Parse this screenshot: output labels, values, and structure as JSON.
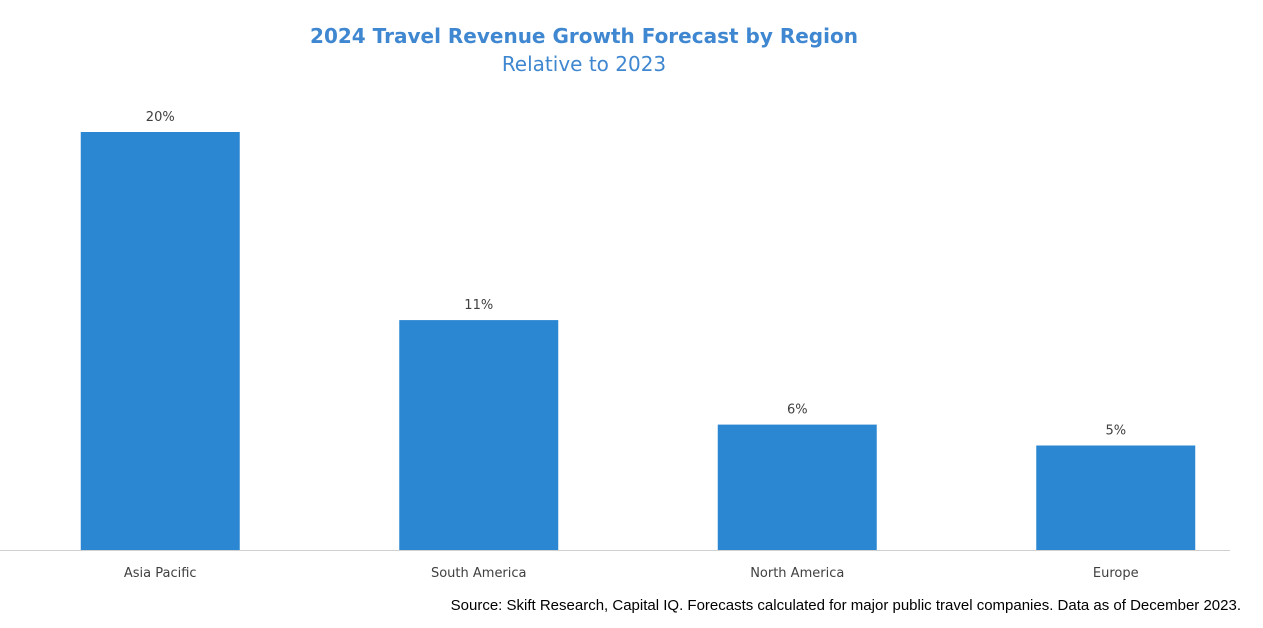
{
  "chart_data": {
    "type": "bar",
    "title": "2024 Travel Revenue Growth Forecast by Region",
    "subtitle": "Relative to 2023",
    "categories": [
      "Asia Pacific",
      "South America",
      "North America",
      "Europe"
    ],
    "values": [
      20,
      11,
      6,
      5
    ],
    "data_labels": [
      "20%",
      "11%",
      "6%",
      "5%"
    ],
    "xlabel": "",
    "ylabel": "",
    "ylim": [
      0,
      20
    ],
    "grid": false,
    "legend": "none",
    "bar_color": "#2b87d1",
    "title_color": "#3f87d0"
  },
  "source": "Source: Skift Research, Capital IQ. Forecasts calculated for major public travel companies. Data as of December 2023."
}
